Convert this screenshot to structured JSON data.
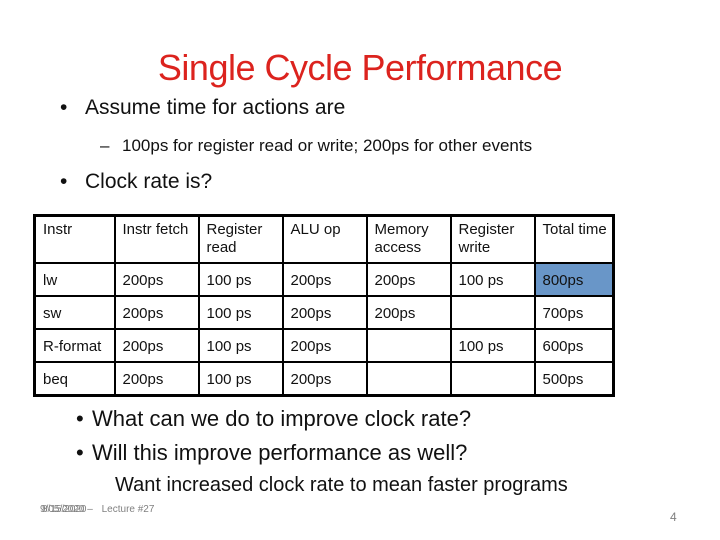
{
  "slide": {
    "title": "Single Cycle Performance",
    "bullets_top": [
      {
        "marker": "•",
        "text": "Assume time for actions are"
      },
      {
        "marker": "–",
        "text": "100ps for register read or write; 200ps for other events"
      },
      {
        "marker": "•",
        "text": "Clock rate is?"
      }
    ],
    "bullets_bottom": [
      {
        "marker": "•",
        "text": "What can we do to improve clock rate?"
      },
      {
        "marker": "•",
        "text": "Will this improve performance as well?"
      }
    ],
    "want_line": "Want increased clock rate to mean faster programs"
  },
  "table": {
    "headers": [
      "Instr",
      "Instr fetch",
      "Register read",
      "ALU op",
      "Memory access",
      "Register write",
      "Total time"
    ],
    "rows": [
      {
        "cells": [
          "lw",
          "200ps",
          "100 ps",
          "200ps",
          "200ps",
          "100 ps",
          "800ps"
        ],
        "highlight_col": 6
      },
      {
        "cells": [
          "sw",
          "200ps",
          "100 ps",
          "200ps",
          "200ps",
          "",
          "700ps"
        ]
      },
      {
        "cells": [
          "R-format",
          "200ps",
          "100 ps",
          "200ps",
          "",
          "100 ps",
          "600ps"
        ]
      },
      {
        "cells": [
          "beq",
          "200ps",
          "100 ps",
          "200ps",
          "",
          "",
          "500ps"
        ]
      }
    ]
  },
  "footer": {
    "date_text_a": "9/05/2020 –",
    "date_text_b": "8/15/2020",
    "lecture_label": "Lecture #27",
    "page_number": "4"
  },
  "colors": {
    "title_red": "#dc231e",
    "highlight_blue": "#6996c8",
    "footer_gray": "#808080",
    "body_text": "#111111"
  }
}
